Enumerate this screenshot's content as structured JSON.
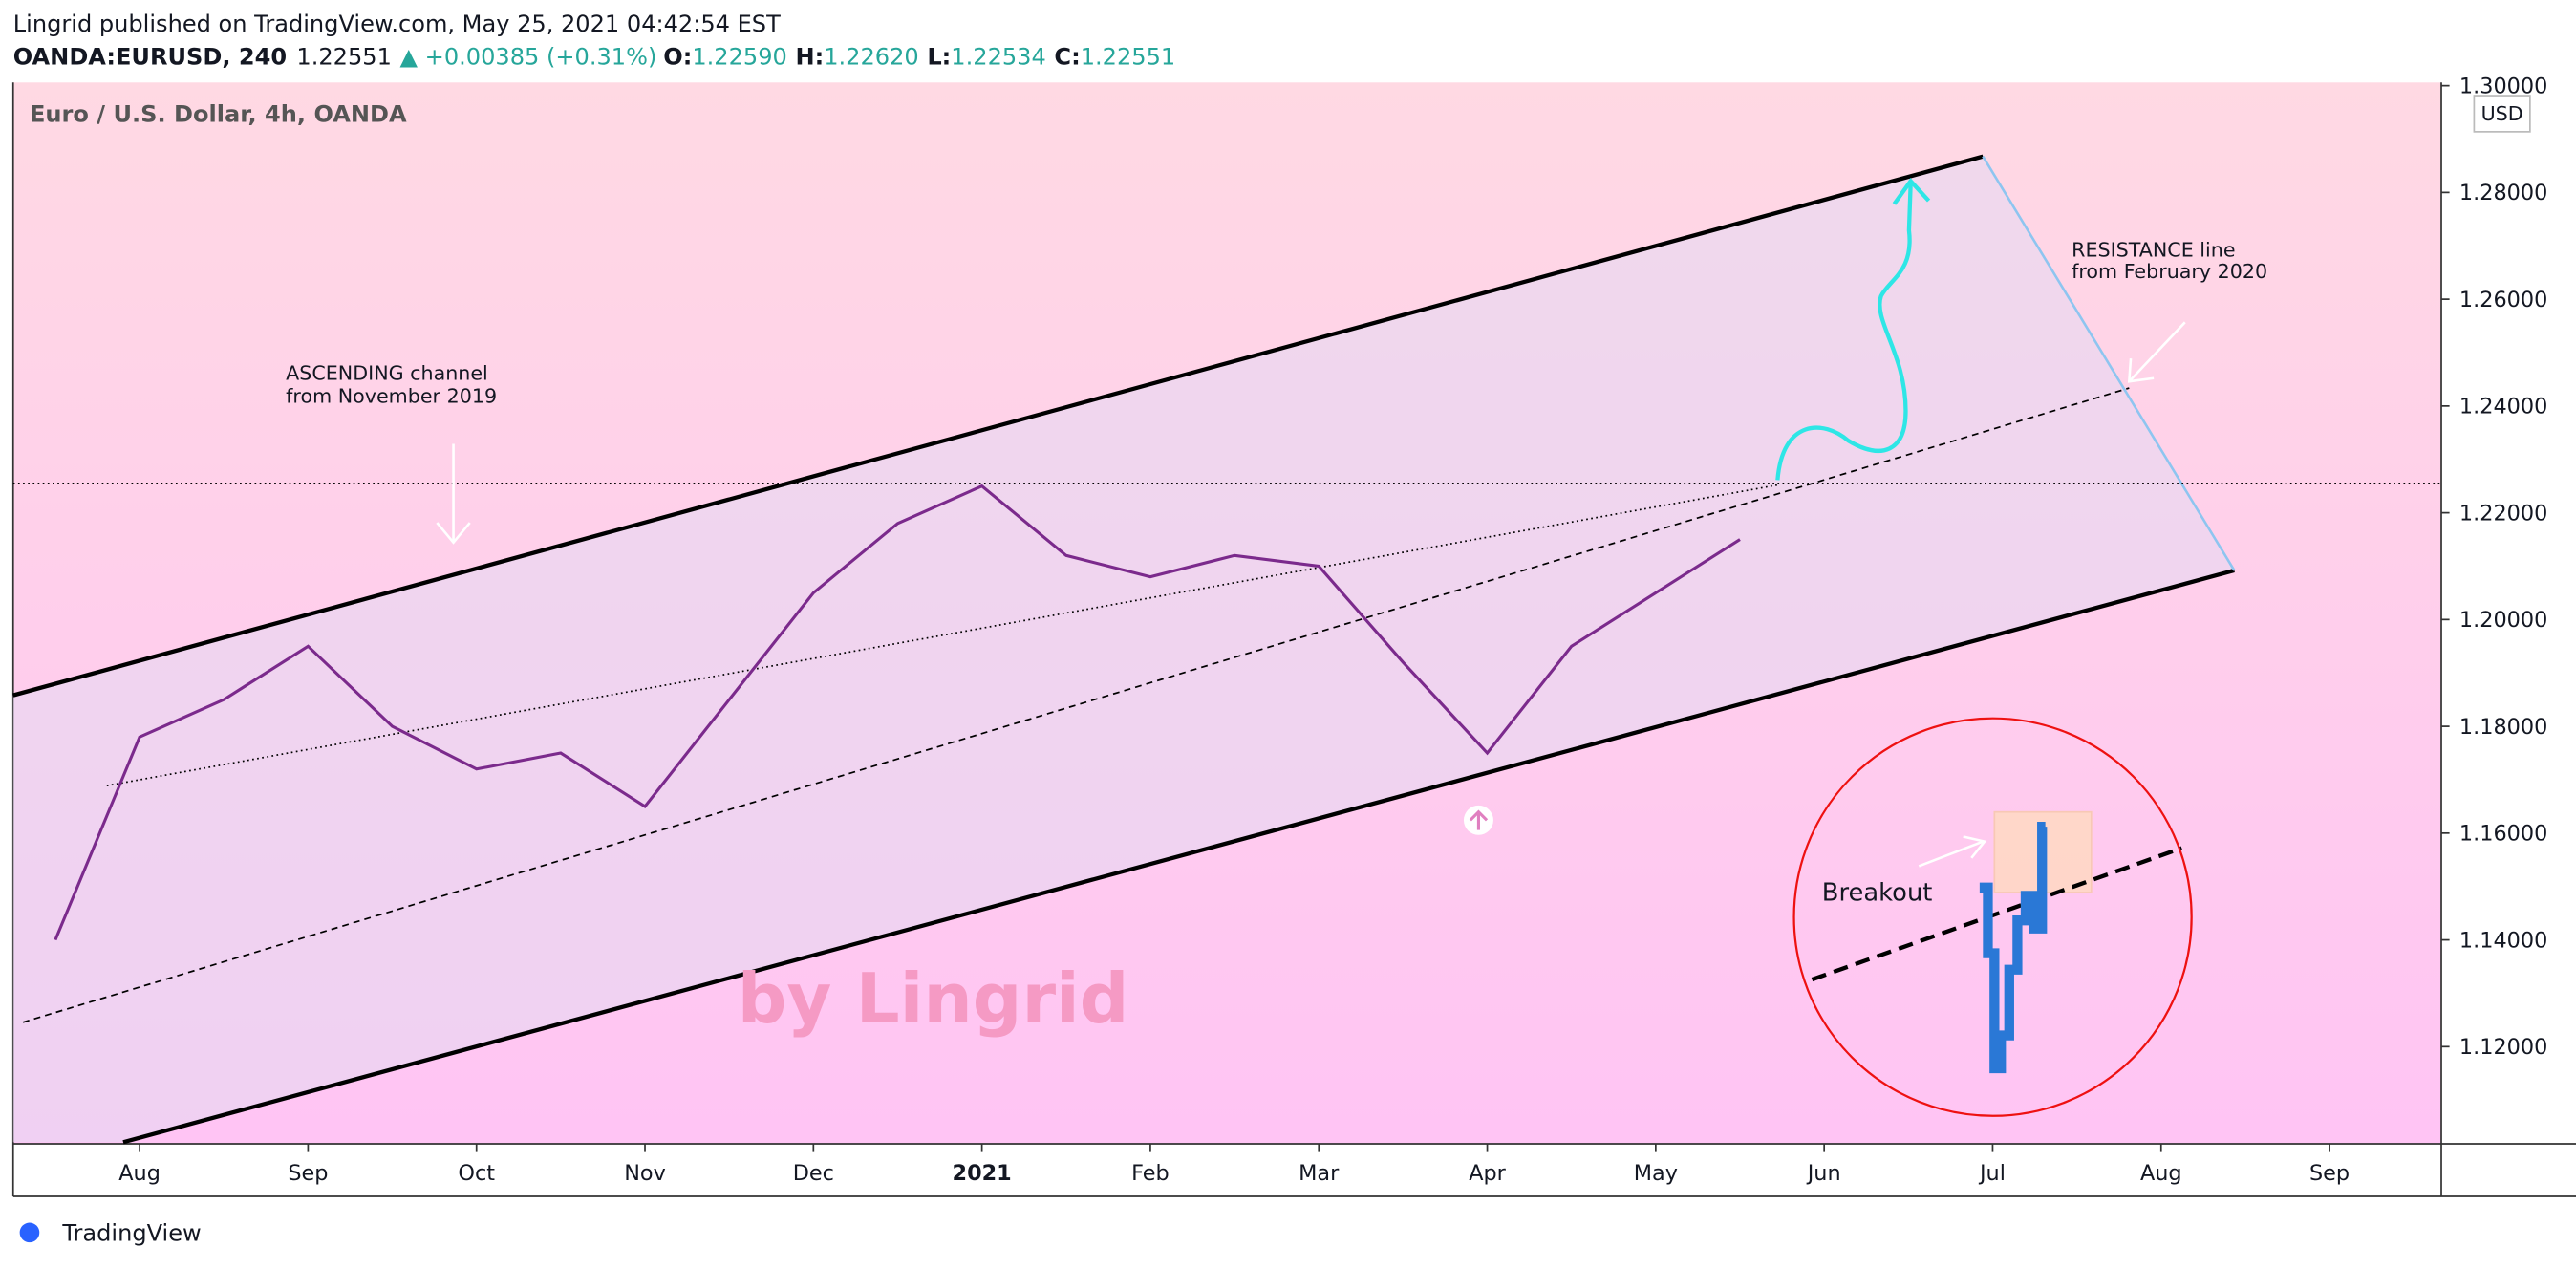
{
  "header": {
    "byline": "Lingrid published on TradingView.com, May 25, 2021 04:42:54 EST",
    "symbol": "OANDA:EURUSD, 240",
    "last": "1.22551",
    "change": "▲ +0.00385 (+0.31%)",
    "open_label": "O:",
    "open": "1.22590",
    "high_label": "H:",
    "high": "1.22620",
    "low_label": "L:",
    "low": "1.22534",
    "close_label": "C:",
    "close": "1.22551"
  },
  "chart_data": {
    "type": "line",
    "title": "Euro / U.S. Dollar, 4h, OANDA",
    "y_unit": "USD",
    "categories": [
      null,
      "Aug",
      null,
      "Sep",
      null,
      "Oct",
      null,
      "Nov",
      null,
      "Dec",
      null,
      "2021",
      null,
      "Feb",
      null,
      "Mar",
      null,
      "Apr",
      null,
      "May",
      null,
      "Jun",
      null,
      "Jul",
      null,
      "Aug",
      null,
      "Sep",
      null
    ],
    "series": [
      {
        "name": "EURUSD",
        "color": "#7b2a8c",
        "values": [
          1.14,
          1.178,
          1.185,
          1.195,
          1.18,
          1.172,
          1.175,
          1.165,
          1.185,
          1.205,
          1.218,
          1.225,
          1.212,
          1.208,
          1.212,
          1.21,
          1.192,
          1.175,
          1.195,
          1.205,
          1.215,
          null,
          null,
          null,
          null,
          null,
          null,
          null,
          null
        ]
      }
    ],
    "ylim": [
      1.1018,
      1.3006
    ],
    "yticks": [
      {
        "value": 1.12,
        "label": "1.12000"
      },
      {
        "value": 1.14,
        "label": "1.14000"
      },
      {
        "value": 1.16,
        "label": "1.16000"
      },
      {
        "value": 1.18,
        "label": "1.18000"
      },
      {
        "value": 1.2,
        "label": "1.20000"
      },
      {
        "value": 1.22,
        "label": "1.22000"
      },
      {
        "value": 1.24,
        "label": "1.24000"
      },
      {
        "value": 1.26,
        "label": "1.26000"
      },
      {
        "value": 1.28,
        "label": "1.28000"
      },
      {
        "value": 1.3,
        "label": "1.30000"
      }
    ],
    "grid": false,
    "annotations": {
      "channel": [
        "ASCENDING channel",
        "from November 2019"
      ],
      "resistance": [
        "RESISTANCE line",
        "from February 2020"
      ],
      "breakout": "Breakout",
      "watermark": "by Lingrid"
    }
  },
  "footer": {
    "brand": "TradingView"
  }
}
